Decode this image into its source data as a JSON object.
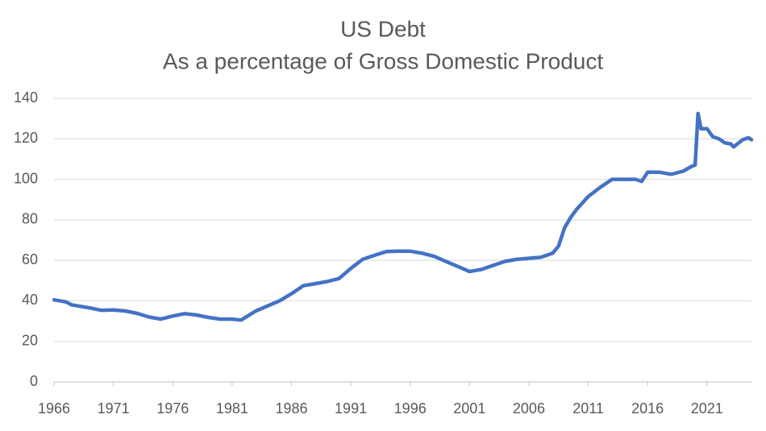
{
  "chart_data": {
    "type": "line",
    "title": "US Debt",
    "subtitle": "As a percentage of Gross Domestic Product",
    "color": "#4472c4",
    "grid": true,
    "xlim": [
      1966,
      2024.75
    ],
    "xticks": [
      1966,
      1971,
      1976,
      1981,
      1986,
      1991,
      1996,
      2001,
      2006,
      2011,
      2016,
      2021
    ],
    "ylim": [
      0,
      140
    ],
    "yticks": [
      0,
      20,
      40,
      60,
      80,
      100,
      120,
      140
    ],
    "x": [
      1966,
      1967,
      1967.5,
      1968,
      1969,
      1970,
      1971,
      1972,
      1973,
      1974,
      1975,
      1976,
      1977,
      1978,
      1979,
      1980,
      1981,
      1981.75,
      1983,
      1984,
      1985,
      1986,
      1987,
      1988,
      1989,
      1990,
      1991,
      1992,
      1993,
      1994,
      1995,
      1996,
      1997,
      1998,
      1999,
      2000,
      2001,
      2002,
      2003,
      2004,
      2005,
      2006,
      2007,
      2008,
      2008.5,
      2009,
      2009.5,
      2010,
      2011,
      2012,
      2013,
      2014,
      2015,
      2015.5,
      2016,
      2017,
      2018,
      2019,
      2019.75,
      2020,
      2020.25,
      2020.5,
      2021,
      2021.5,
      2022,
      2022.5,
      2023,
      2023.25,
      2024,
      2024.5,
      2024.75
    ],
    "values": [
      40.5,
      39.5,
      38,
      37.5,
      36.5,
      35.3,
      35.5,
      35,
      33.8,
      32,
      31,
      32.5,
      33.7,
      33,
      31.8,
      31,
      31,
      30.5,
      35,
      37.5,
      40,
      43.5,
      47.5,
      48.5,
      49.5,
      51,
      56,
      60.5,
      62.5,
      64.3,
      64.5,
      64.5,
      63.5,
      62,
      59.5,
      57,
      54.5,
      55.5,
      57.5,
      59.5,
      60.5,
      61,
      61.5,
      63.5,
      67,
      76,
      81,
      85,
      91.5,
      96,
      100,
      100,
      100,
      99,
      103.5,
      103.5,
      102.5,
      104,
      106.5,
      107,
      132.5,
      125,
      125,
      121,
      120,
      118,
      117.5,
      116,
      119.5,
      120.5,
      119.5
    ]
  }
}
